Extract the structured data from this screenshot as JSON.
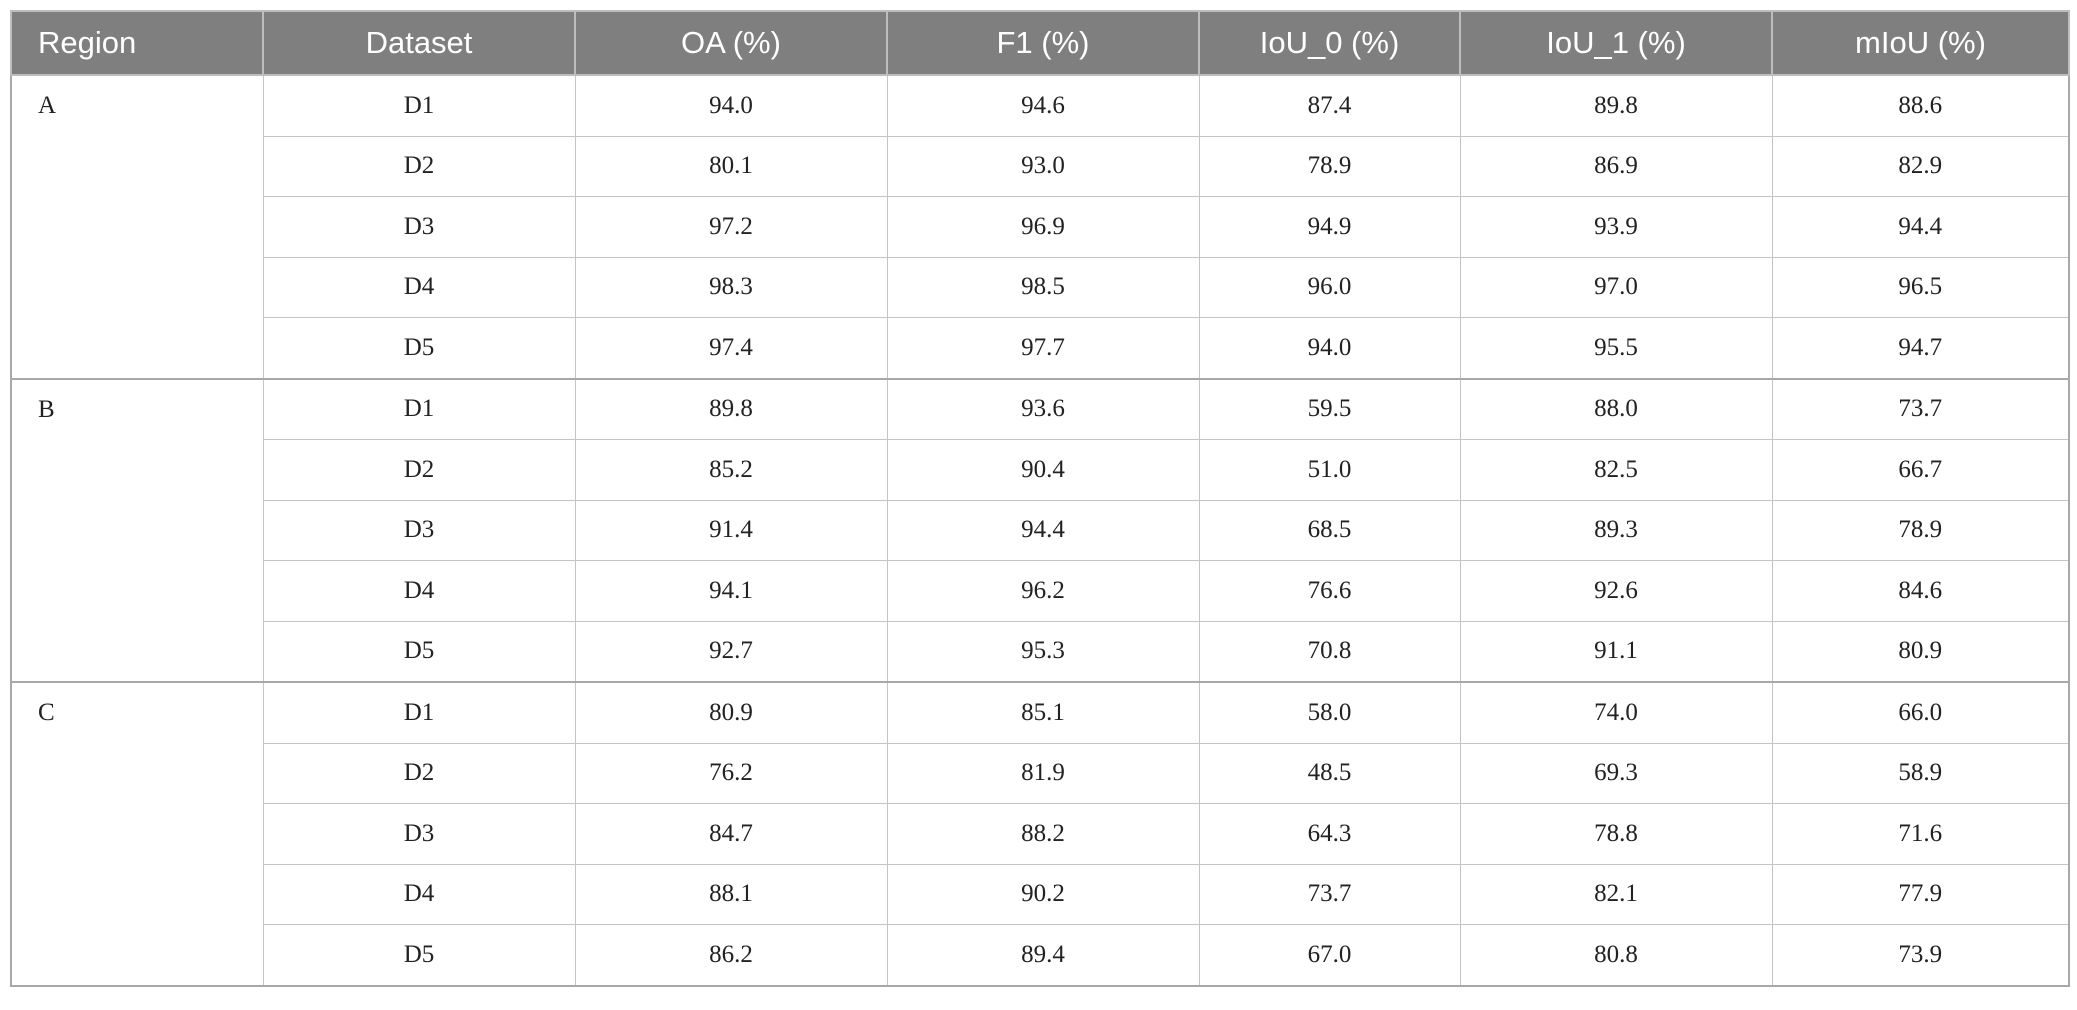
{
  "table": {
    "header": [
      "Region",
      "Dataset",
      "OA (%)",
      "F1 (%)",
      "IoU_0 (%)",
      "IoU_1 (%)",
      "mIoU (%)"
    ],
    "groups": [
      {
        "region": "A",
        "rows": [
          [
            "D1",
            "94.0",
            "94.6",
            "87.4",
            "89.8",
            "88.6"
          ],
          [
            "D2",
            "80.1",
            "93.0",
            "78.9",
            "86.9",
            "82.9"
          ],
          [
            "D3",
            "97.2",
            "96.9",
            "94.9",
            "93.9",
            "94.4"
          ],
          [
            "D4",
            "98.3",
            "98.5",
            "96.0",
            "97.0",
            "96.5"
          ],
          [
            "D5",
            "97.4",
            "97.7",
            "94.0",
            "95.5",
            "94.7"
          ]
        ]
      },
      {
        "region": "B",
        "rows": [
          [
            "D1",
            "89.8",
            "93.6",
            "59.5",
            "88.0",
            "73.7"
          ],
          [
            "D2",
            "85.2",
            "90.4",
            "51.0",
            "82.5",
            "66.7"
          ],
          [
            "D3",
            "91.4",
            "94.4",
            "68.5",
            "89.3",
            "78.9"
          ],
          [
            "D4",
            "94.1",
            "96.2",
            "76.6",
            "92.6",
            "84.6"
          ],
          [
            "D5",
            "92.7",
            "95.3",
            "70.8",
            "91.1",
            "80.9"
          ]
        ]
      },
      {
        "region": "C",
        "rows": [
          [
            "D1",
            "80.9",
            "85.1",
            "58.0",
            "74.0",
            "66.0"
          ],
          [
            "D2",
            "76.2",
            "81.9",
            "48.5",
            "69.3",
            "58.9"
          ],
          [
            "D3",
            "84.7",
            "88.2",
            "64.3",
            "78.8",
            "71.6"
          ],
          [
            "D4",
            "88.1",
            "90.2",
            "73.7",
            "82.1",
            "77.9"
          ],
          [
            "D5",
            "86.2",
            "89.4",
            "67.0",
            "80.8",
            "73.9"
          ]
        ]
      }
    ]
  }
}
